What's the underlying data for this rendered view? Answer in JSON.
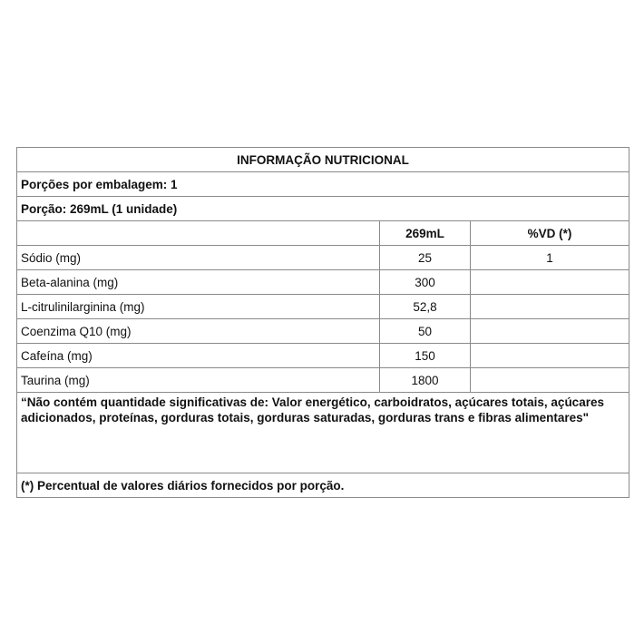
{
  "title": "INFORMAÇÃO NUTRICIONAL",
  "servings_per_package": "Porções por embalagem: 1",
  "serving": "Porção: 269mL (1 unidade)",
  "columns": [
    "",
    "269mL",
    "%VD (*)"
  ],
  "rows": [
    {
      "name": "Sódio (mg)",
      "amount": "25",
      "dv": "1"
    },
    {
      "name": "Beta-alanina (mg)",
      "amount": "300",
      "dv": ""
    },
    {
      "name": "L-citrulinilarginina (mg)",
      "amount": "52,8",
      "dv": ""
    },
    {
      "name": "Coenzima Q10 (mg)",
      "amount": "50",
      "dv": ""
    },
    {
      "name": "Cafeína (mg)",
      "amount": "150",
      "dv": ""
    },
    {
      "name": "Taurina (mg)",
      "amount": "1800",
      "dv": ""
    }
  ],
  "note": " “Não contém quantidade significativas de: Valor energético, carboidratos, açúcares totais, açúcares adicionados, proteínas, gorduras totais, gorduras saturadas, gorduras trans e fibras alimentares\"",
  "footer": "(*) Percentual de valores diários fornecidos por porção."
}
